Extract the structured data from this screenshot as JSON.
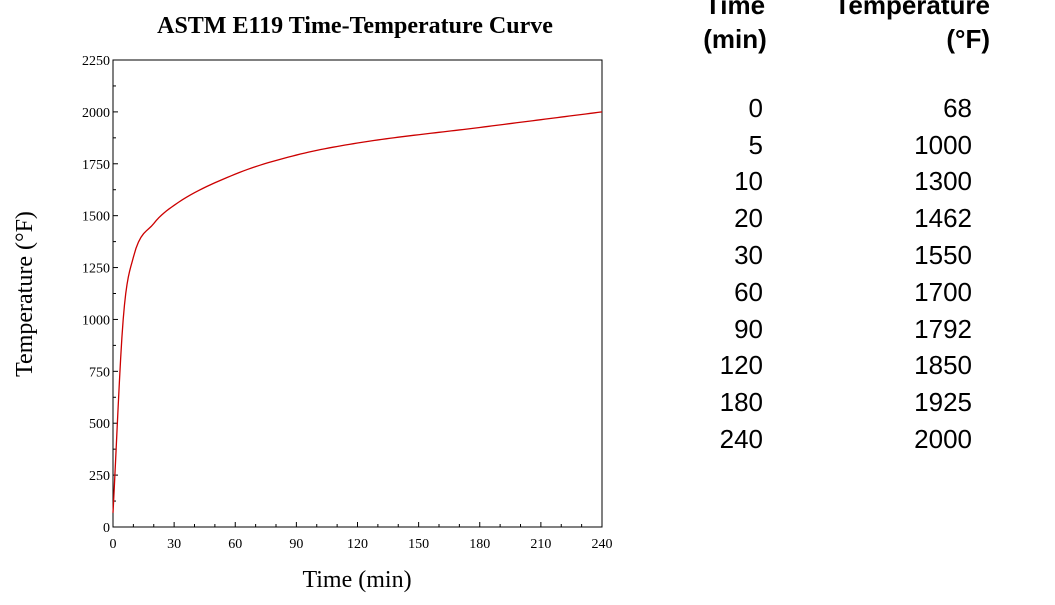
{
  "chart_data": {
    "type": "line",
    "title": "ASTM E119 Time-Temperature Curve",
    "xlabel": "Time (min)",
    "ylabel": "Temperature (°F)",
    "xlim": [
      0,
      240
    ],
    "ylim": [
      0,
      2250
    ],
    "xticks": [
      0,
      30,
      60,
      90,
      120,
      150,
      180,
      210,
      240
    ],
    "yticks": [
      0,
      250,
      500,
      750,
      1000,
      1250,
      1500,
      1750,
      2000,
      2250
    ],
    "grid": false,
    "line_color": "#cc0000",
    "series": [
      {
        "x": [
          0,
          5,
          10,
          20,
          30,
          60,
          90,
          120,
          180,
          240
        ],
        "y": [
          68,
          1000,
          1300,
          1462,
          1550,
          1700,
          1792,
          1850,
          1925,
          2000
        ]
      }
    ]
  },
  "table": {
    "headers": {
      "time": [
        "Time",
        "(min)"
      ],
      "temperature": [
        "Temperature",
        "(°F)"
      ]
    },
    "rows": [
      {
        "time": "0",
        "temp": "68"
      },
      {
        "time": "5",
        "temp": "1000"
      },
      {
        "time": "10",
        "temp": "1300"
      },
      {
        "time": "20",
        "temp": "1462"
      },
      {
        "time": "30",
        "temp": "1550"
      },
      {
        "time": "60",
        "temp": "1700"
      },
      {
        "time": "90",
        "temp": "1792"
      },
      {
        "time": "120",
        "temp": "1850"
      },
      {
        "time": "180",
        "temp": "1925"
      },
      {
        "time": "240",
        "temp": "2000"
      }
    ]
  }
}
